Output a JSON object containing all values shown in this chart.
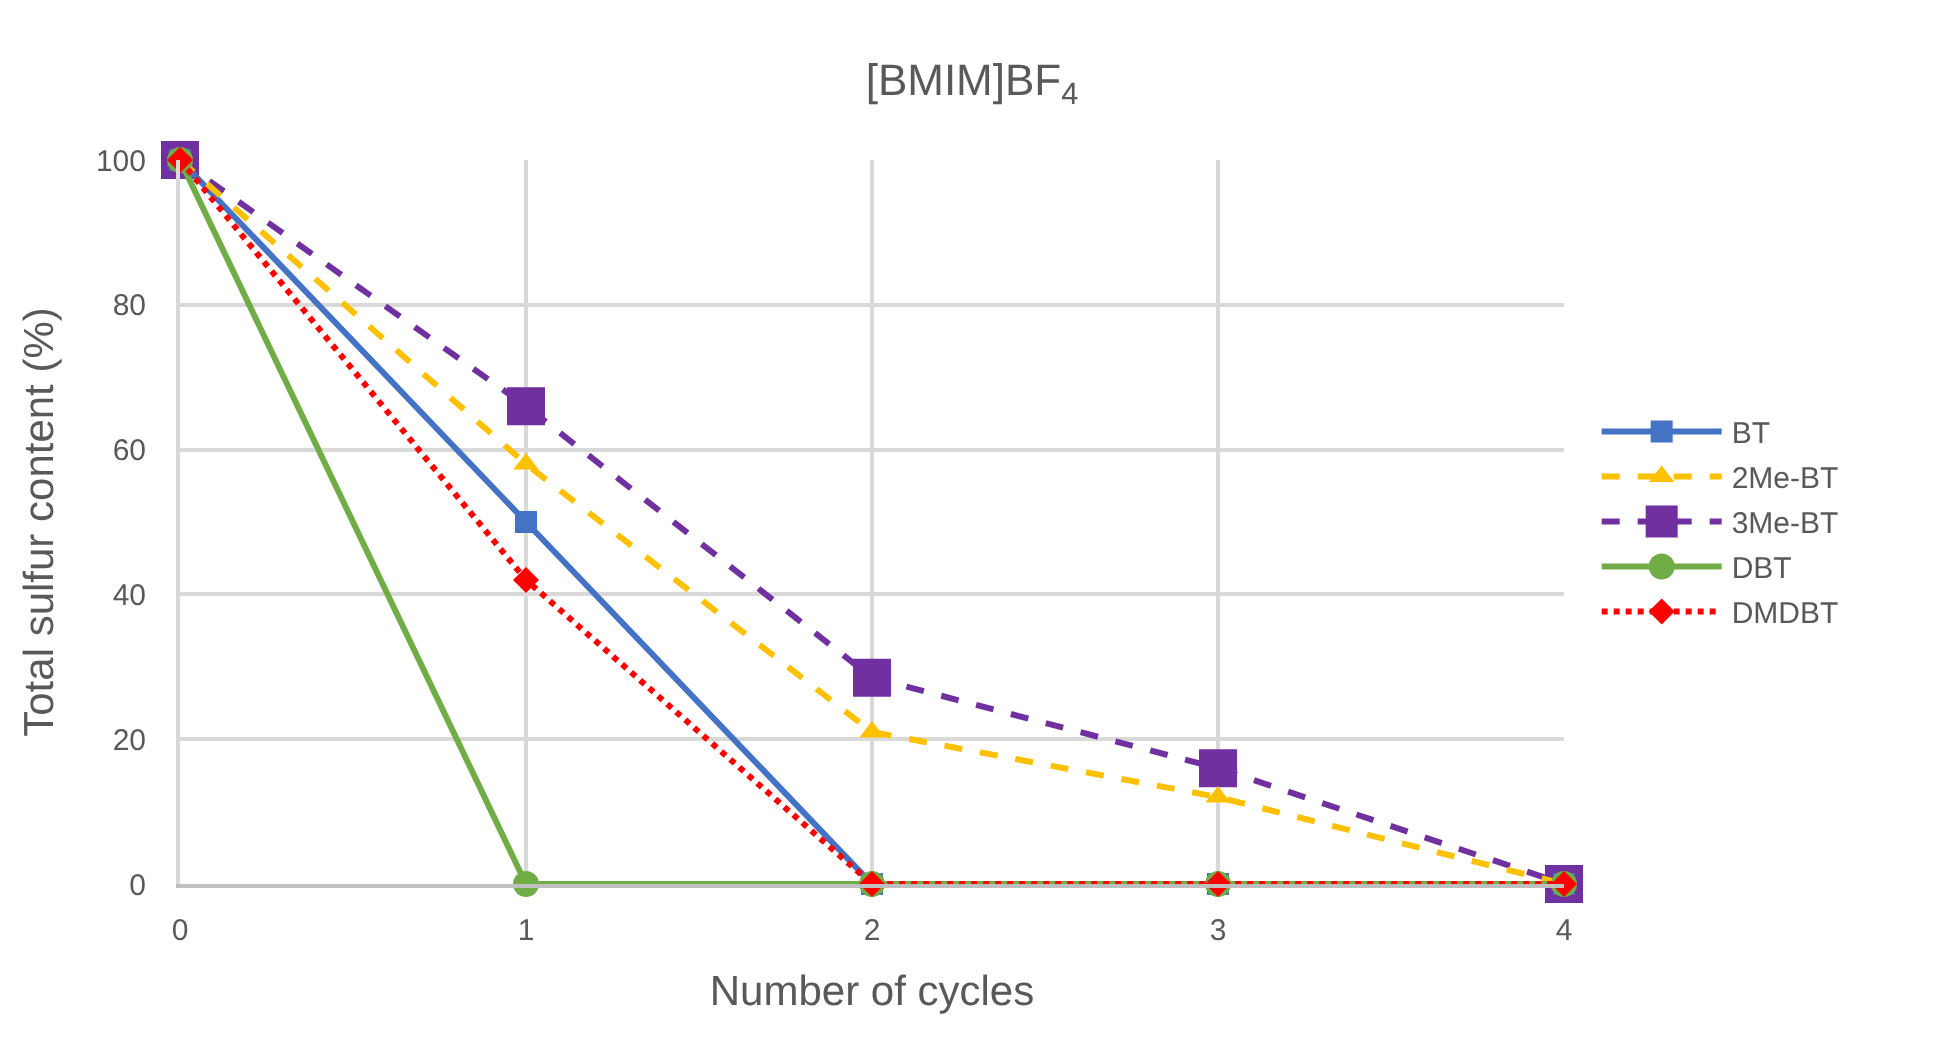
{
  "chart_data": {
    "type": "line",
    "title": "[BMIM]BF$_{4}$",
    "xlabel": "Number of cycles",
    "ylabel": "Total sulfur content (%)",
    "x": [
      0,
      1,
      2,
      3,
      4
    ],
    "series": [
      {
        "name": "BT",
        "color": "#4472c4",
        "values": [
          100,
          50,
          0,
          0,
          0
        ],
        "marker": "square",
        "line_style": "solid"
      },
      {
        "name": "2Me-BT",
        "color": "#ffc000",
        "values": [
          100,
          58,
          21,
          12,
          0
        ],
        "marker": "triangle",
        "line_style": "dashed"
      },
      {
        "name": "3Me-BT",
        "color": "#7030a0",
        "values": [
          100,
          66,
          28.5,
          16,
          0
        ],
        "marker": "square",
        "line_style": "dashed"
      },
      {
        "name": "DBT",
        "color": "#70ad47",
        "values": [
          100,
          0,
          0,
          0,
          0
        ],
        "marker": "circle",
        "line_style": "solid"
      },
      {
        "name": "DMDBT",
        "color": "#ff0000",
        "values": [
          100,
          42,
          0,
          0,
          0
        ],
        "marker": "diamond",
        "line_style": "dotted"
      }
    ],
    "xlim": [
      0,
      4
    ],
    "xticks": [
      0,
      1,
      2,
      3,
      4
    ],
    "ylim": [
      0,
      100
    ],
    "yticks": [
      0,
      20,
      40,
      60,
      80,
      100
    ],
    "grid": true,
    "legend": "right"
  }
}
